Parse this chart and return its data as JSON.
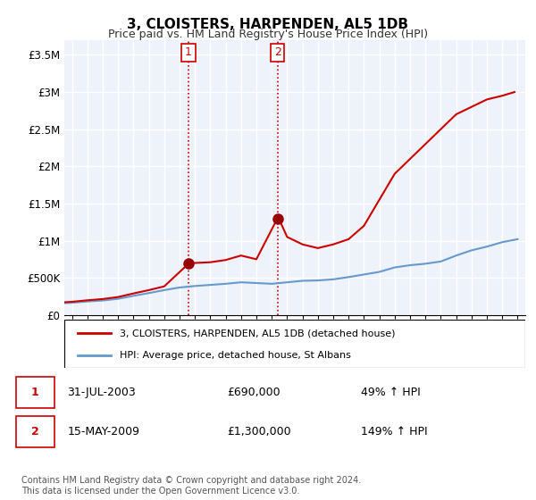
{
  "title_main": "3, CLOISTERS, HARPENDEN, AL5 1DB",
  "subtitle": "Price paid vs. HM Land Registry's House Price Index (HPI)",
  "ylabel_ticks": [
    "£0",
    "£500K",
    "£1M",
    "£1.5M",
    "£2M",
    "£2.5M",
    "£3M",
    "£3.5M"
  ],
  "ylabel_values": [
    0,
    500000,
    1000000,
    1500000,
    2000000,
    2500000,
    3000000,
    3500000
  ],
  "ylim": [
    0,
    3700000
  ],
  "xlim_start": 1995.5,
  "xlim_end": 2025.5,
  "background_color": "#ffffff",
  "plot_bg_color": "#eef2fa",
  "grid_color": "#ffffff",
  "transaction1_x": 2003.58,
  "transaction1_y": 690000,
  "transaction2_x": 2009.37,
  "transaction2_y": 1300000,
  "marker_size": 8,
  "line1_color": "#cc0000",
  "line2_color": "#6699cc",
  "vline_color": "#cc0000",
  "legend_label1": "3, CLOISTERS, HARPENDEN, AL5 1DB (detached house)",
  "legend_label2": "HPI: Average price, detached house, St Albans",
  "table_row1": [
    "1",
    "31-JUL-2003",
    "£690,000",
    "49% ↑ HPI"
  ],
  "table_row2": [
    "2",
    "15-MAY-2009",
    "£1,300,000",
    "149% ↑ HPI"
  ],
  "footer": "Contains HM Land Registry data © Crown copyright and database right 2024.\nThis data is licensed under the Open Government Licence v3.0.",
  "years": [
    1995,
    1996,
    1997,
    1998,
    1999,
    2000,
    2001,
    2002,
    2003,
    2004,
    2005,
    2006,
    2007,
    2008,
    2009,
    2010,
    2011,
    2012,
    2013,
    2014,
    2015,
    2016,
    2017,
    2018,
    2019,
    2020,
    2021,
    2022,
    2023,
    2024,
    2025
  ],
  "hpi_values": [
    155000,
    165000,
    182000,
    195000,
    218000,
    258000,
    295000,
    335000,
    370000,
    390000,
    405000,
    420000,
    440000,
    430000,
    420000,
    440000,
    460000,
    465000,
    480000,
    510000,
    545000,
    580000,
    640000,
    670000,
    690000,
    720000,
    800000,
    870000,
    920000,
    980000,
    1020000
  ],
  "property_values_x": [
    1995,
    1996,
    1997,
    1998,
    1999,
    2000,
    2001,
    2002,
    2003.58,
    2003.7,
    2004,
    2005,
    2006,
    2007,
    2008,
    2009.37,
    2009.5,
    2010,
    2011,
    2012,
    2013,
    2014,
    2015,
    2016,
    2017,
    2018,
    2019,
    2020,
    2021,
    2022,
    2023,
    2024,
    2024.8
  ],
  "property_values_y": [
    165000,
    178000,
    198000,
    215000,
    242000,
    290000,
    335000,
    385000,
    690000,
    700000,
    700000,
    710000,
    740000,
    800000,
    750000,
    1300000,
    1280000,
    1050000,
    950000,
    900000,
    950000,
    1020000,
    1200000,
    1550000,
    1900000,
    2100000,
    2300000,
    2500000,
    2700000,
    2800000,
    2900000,
    2950000,
    3000000
  ]
}
